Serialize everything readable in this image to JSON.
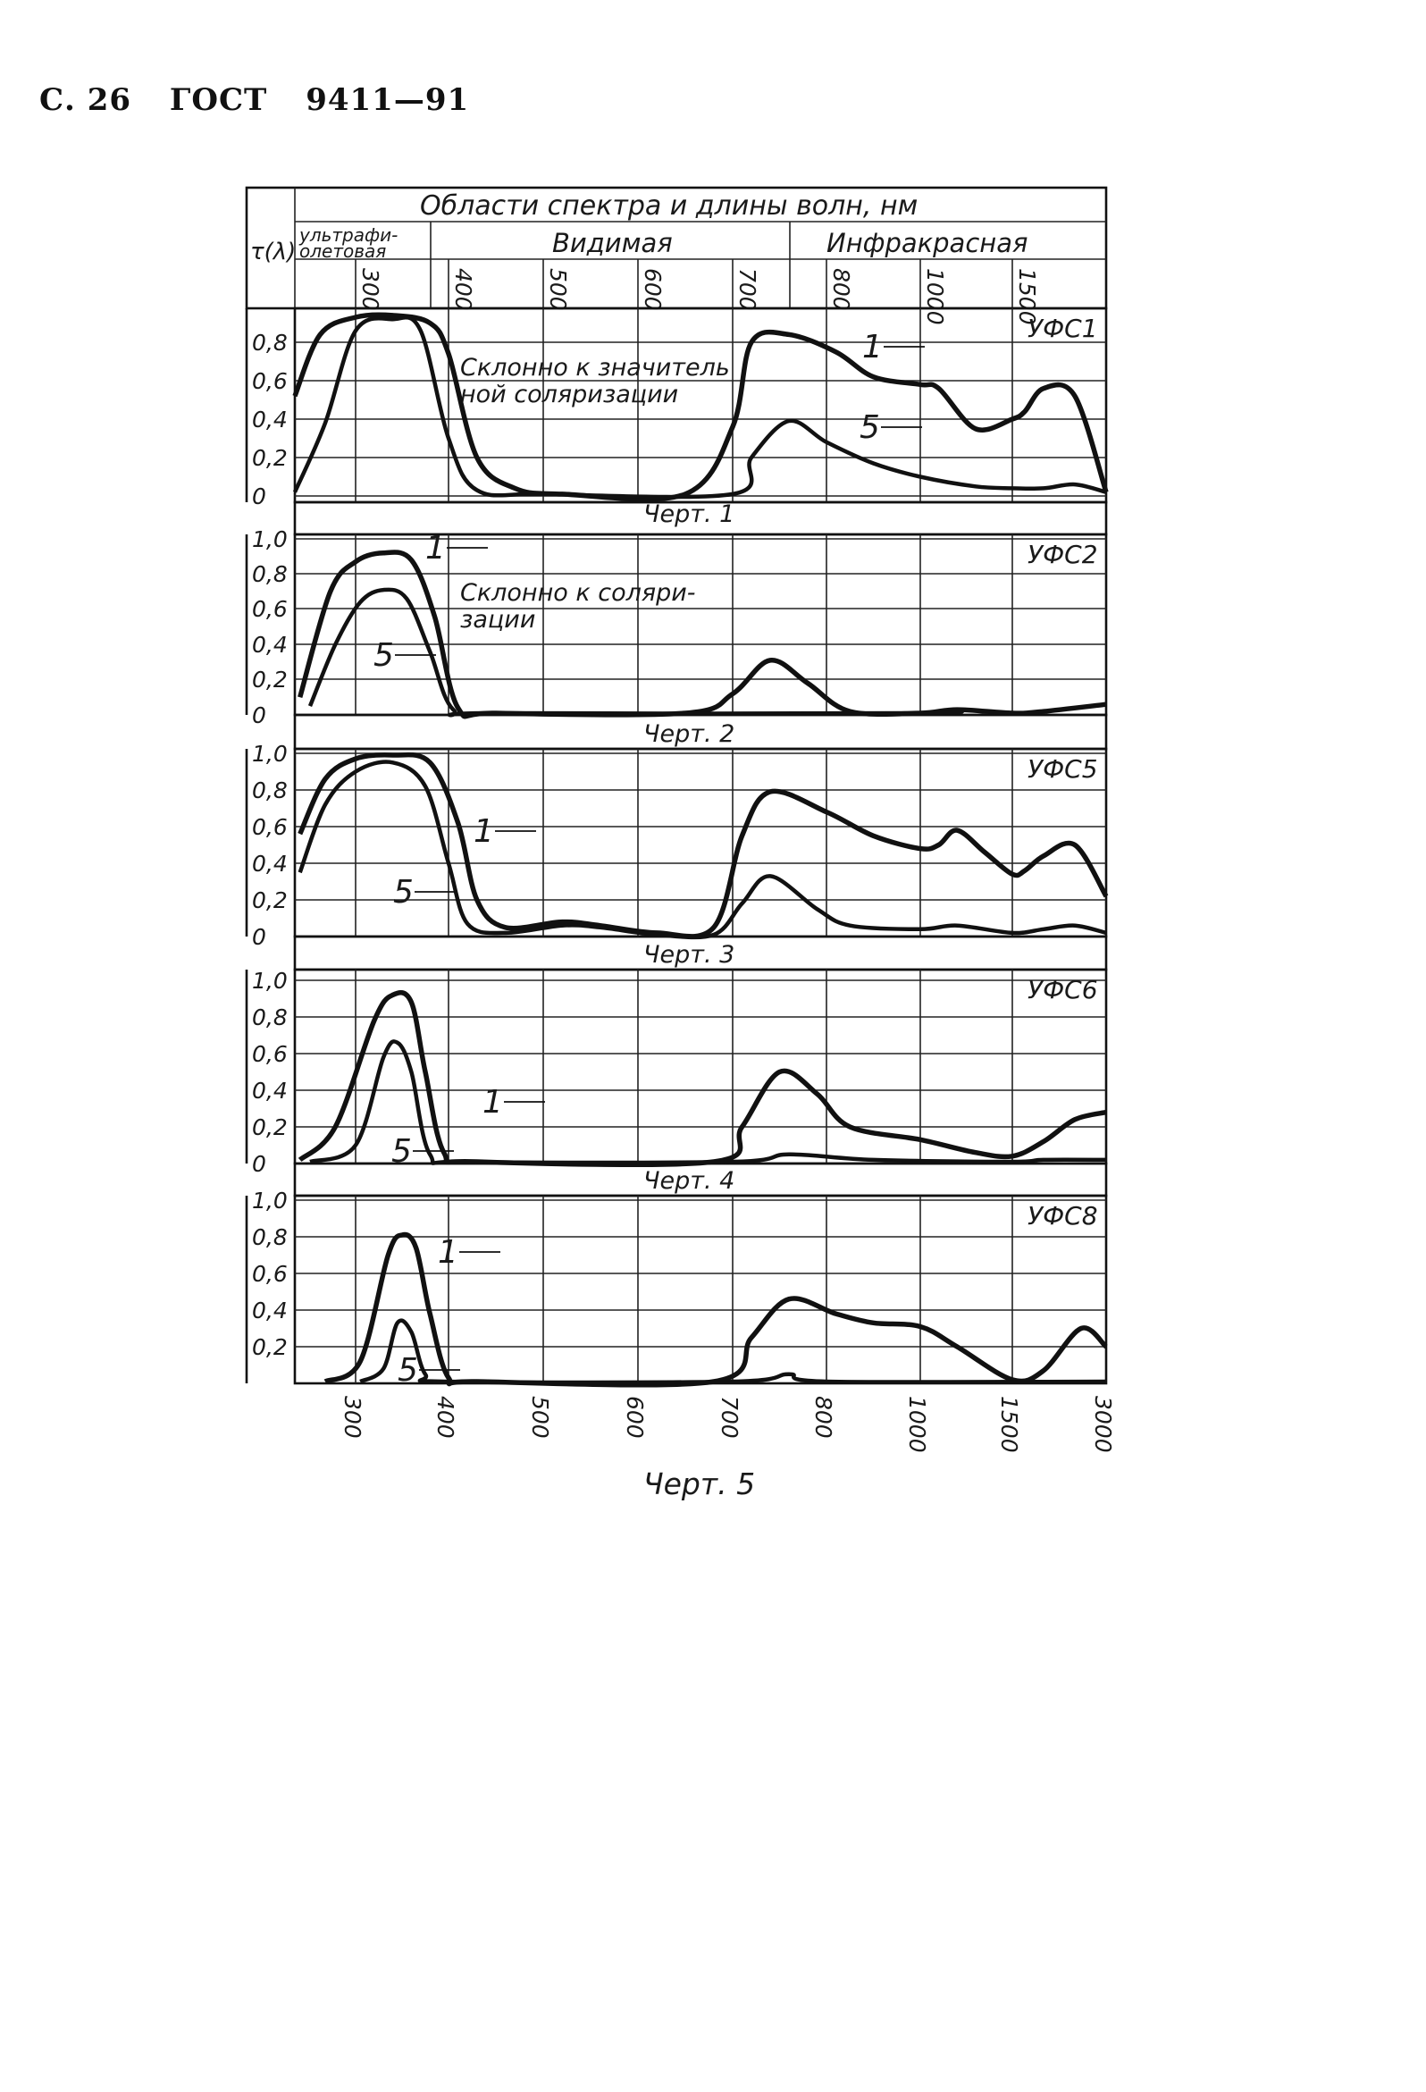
{
  "header": {
    "page": "С. 26",
    "standard": "ГОСТ",
    "number": "9411—91"
  },
  "table_header": {
    "ylabel": "τ(λ)",
    "title": "Области спектра и длины волн, нм",
    "regions": [
      "ультрафиолетовая",
      "Видимая",
      "Инфракрасная"
    ],
    "uv_line1": "ультрафи-",
    "uv_line2": "олетовая"
  },
  "bottom_label": "Черт. 5",
  "chart_data": [
    {
      "type": "line",
      "title": "УФС1",
      "caption": "Черт. 1",
      "annotation": [
        "Склонно к значитель",
        "ной соляризации"
      ],
      "x": [
        300,
        400,
        500,
        600,
        700,
        800,
        1000,
        1500,
        3000
      ],
      "ylim": [
        0,
        0.9
      ],
      "yticks": [
        "0",
        "0,2",
        "0,4",
        "0,6",
        "0,8"
      ],
      "series": [
        {
          "name": "1",
          "points": [
            [
              240,
              0.52
            ],
            [
              265,
              0.84
            ],
            [
              300,
              0.93
            ],
            [
              340,
              0.94
            ],
            [
              380,
              0.9
            ],
            [
              400,
              0.74
            ],
            [
              430,
              0.2
            ],
            [
              470,
              0.04
            ],
            [
              520,
              0.01
            ],
            [
              650,
              0.01
            ],
            [
              700,
              0.36
            ],
            [
              720,
              0.8
            ],
            [
              760,
              0.84
            ],
            [
              820,
              0.75
            ],
            [
              900,
              0.62
            ],
            [
              1000,
              0.58
            ],
            [
              1100,
              0.56
            ],
            [
              1300,
              0.35
            ],
            [
              1500,
              0.4
            ],
            [
              1700,
              0.44
            ],
            [
              2000,
              0.56
            ],
            [
              2500,
              0.52
            ],
            [
              3000,
              0.02
            ]
          ]
        },
        {
          "name": "5",
          "points": [
            [
              240,
              0.02
            ],
            [
              270,
              0.38
            ],
            [
              300,
              0.86
            ],
            [
              340,
              0.92
            ],
            [
              370,
              0.86
            ],
            [
              400,
              0.3
            ],
            [
              430,
              0.03
            ],
            [
              500,
              0.01
            ],
            [
              700,
              0.01
            ],
            [
              720,
              0.2
            ],
            [
              760,
              0.39
            ],
            [
              800,
              0.28
            ],
            [
              900,
              0.17
            ],
            [
              1000,
              0.1
            ],
            [
              1300,
              0.05
            ],
            [
              1500,
              0.04
            ],
            [
              2000,
              0.04
            ],
            [
              2500,
              0.06
            ],
            [
              3000,
              0.02
            ]
          ]
        }
      ]
    },
    {
      "type": "line",
      "title": "УФС2",
      "caption": "Черт. 2",
      "annotation": [
        "Склонно к соляри-",
        "зации"
      ],
      "x": [
        300,
        400,
        500,
        600,
        700,
        800,
        1000,
        1500,
        3000
      ],
      "ylim": [
        0,
        1.0
      ],
      "yticks": [
        "0",
        "0,2",
        "0,4",
        "0,6",
        "0,8",
        "1,0"
      ],
      "series": [
        {
          "name": "1",
          "points": [
            [
              245,
              0.1
            ],
            [
              275,
              0.7
            ],
            [
              300,
              0.87
            ],
            [
              330,
              0.92
            ],
            [
              360,
              0.88
            ],
            [
              385,
              0.56
            ],
            [
              410,
              0.04
            ],
            [
              450,
              0.01
            ],
            [
              650,
              0.01
            ],
            [
              700,
              0.12
            ],
            [
              740,
              0.31
            ],
            [
              780,
              0.18
            ],
            [
              850,
              0.02
            ],
            [
              1000,
              0.01
            ],
            [
              1200,
              0.03
            ],
            [
              1500,
              0.01
            ],
            [
              2000,
              0.02
            ],
            [
              3000,
              0.06
            ]
          ]
        },
        {
          "name": "5",
          "points": [
            [
              255,
              0.05
            ],
            [
              280,
              0.4
            ],
            [
              305,
              0.64
            ],
            [
              330,
              0.71
            ],
            [
              355,
              0.66
            ],
            [
              380,
              0.36
            ],
            [
              405,
              0.03
            ],
            [
              450,
              0.01
            ],
            [
              1000,
              0.01
            ],
            [
              1200,
              0.03
            ],
            [
              1500,
              0.01
            ],
            [
              2000,
              0.02
            ],
            [
              3000,
              0.06
            ]
          ]
        }
      ]
    },
    {
      "type": "line",
      "title": "УФС5",
      "caption": "Черт. 3",
      "x": [
        300,
        400,
        500,
        600,
        700,
        800,
        1000,
        1500,
        3000
      ],
      "ylim": [
        0,
        1.0
      ],
      "yticks": [
        "0",
        "0,2",
        "0,4",
        "0,6",
        "0,8",
        "1,0"
      ],
      "series": [
        {
          "name": "1",
          "points": [
            [
              245,
              0.56
            ],
            [
              270,
              0.86
            ],
            [
              300,
              0.97
            ],
            [
              340,
              0.99
            ],
            [
              380,
              0.95
            ],
            [
              410,
              0.62
            ],
            [
              430,
              0.2
            ],
            [
              460,
              0.05
            ],
            [
              520,
              0.08
            ],
            [
              560,
              0.06
            ],
            [
              620,
              0.02
            ],
            [
              680,
              0.05
            ],
            [
              710,
              0.55
            ],
            [
              740,
              0.79
            ],
            [
              800,
              0.68
            ],
            [
              900,
              0.55
            ],
            [
              1000,
              0.48
            ],
            [
              1100,
              0.5
            ],
            [
              1200,
              0.58
            ],
            [
              1350,
              0.46
            ],
            [
              1500,
              0.34
            ],
            [
              1700,
              0.36
            ],
            [
              2000,
              0.44
            ],
            [
              2500,
              0.5
            ],
            [
              3000,
              0.22
            ]
          ]
        },
        {
          "name": "5",
          "points": [
            [
              245,
              0.35
            ],
            [
              270,
              0.72
            ],
            [
              300,
              0.9
            ],
            [
              340,
              0.95
            ],
            [
              375,
              0.82
            ],
            [
              400,
              0.4
            ],
            [
              420,
              0.07
            ],
            [
              460,
              0.02
            ],
            [
              520,
              0.06
            ],
            [
              560,
              0.05
            ],
            [
              620,
              0.01
            ],
            [
              680,
              0.01
            ],
            [
              710,
              0.18
            ],
            [
              740,
              0.33
            ],
            [
              790,
              0.15
            ],
            [
              850,
              0.06
            ],
            [
              1000,
              0.04
            ],
            [
              1200,
              0.06
            ],
            [
              1500,
              0.02
            ],
            [
              2000,
              0.04
            ],
            [
              2500,
              0.06
            ],
            [
              3000,
              0.02
            ]
          ]
        }
      ]
    },
    {
      "type": "line",
      "title": "УФС6",
      "caption": "Черт. 4",
      "x": [
        300,
        400,
        500,
        600,
        700,
        800,
        1000,
        1500,
        3000
      ],
      "ylim": [
        0,
        1.0
      ],
      "yticks": [
        "0",
        "0,2",
        "0,4",
        "0,6",
        "0,8",
        "1,0"
      ],
      "series": [
        {
          "name": "1",
          "points": [
            [
              245,
              0.02
            ],
            [
              280,
              0.2
            ],
            [
              320,
              0.78
            ],
            [
              340,
              0.92
            ],
            [
              360,
              0.88
            ],
            [
              375,
              0.5
            ],
            [
              395,
              0.06
            ],
            [
              430,
              0.01
            ],
            [
              680,
              0.01
            ],
            [
              710,
              0.2
            ],
            [
              750,
              0.5
            ],
            [
              790,
              0.38
            ],
            [
              850,
              0.2
            ],
            [
              1000,
              0.13
            ],
            [
              1300,
              0.06
            ],
            [
              1500,
              0.04
            ],
            [
              2000,
              0.12
            ],
            [
              2500,
              0.24
            ],
            [
              3000,
              0.28
            ]
          ]
        },
        {
          "name": "5",
          "points": [
            [
              255,
              0.01
            ],
            [
              300,
              0.1
            ],
            [
              330,
              0.58
            ],
            [
              345,
              0.66
            ],
            [
              360,
              0.5
            ],
            [
              380,
              0.05
            ],
            [
              420,
              0.01
            ],
            [
              700,
              0.01
            ],
            [
              760,
              0.05
            ],
            [
              900,
              0.02
            ],
            [
              1500,
              0.01
            ],
            [
              2000,
              0.02
            ],
            [
              3000,
              0.02
            ]
          ]
        }
      ]
    },
    {
      "type": "line",
      "title": "УФС8",
      "caption": "Черт. 5",
      "x": [
        300,
        400,
        500,
        600,
        700,
        800,
        1000,
        1500,
        3000
      ],
      "ylim": [
        0,
        1.0
      ],
      "yticks": [
        "0,2",
        "0,4",
        "0,6",
        "0,8",
        "1,0"
      ],
      "series": [
        {
          "name": "1",
          "points": [
            [
              270,
              0.01
            ],
            [
              305,
              0.12
            ],
            [
              335,
              0.7
            ],
            [
              350,
              0.81
            ],
            [
              365,
              0.74
            ],
            [
              380,
              0.38
            ],
            [
              400,
              0.03
            ],
            [
              430,
              0.01
            ],
            [
              680,
              0.01
            ],
            [
              720,
              0.25
            ],
            [
              760,
              0.46
            ],
            [
              820,
              0.38
            ],
            [
              900,
              0.33
            ],
            [
              1000,
              0.31
            ],
            [
              1200,
              0.2
            ],
            [
              1500,
              0.02
            ],
            [
              2000,
              0.07
            ],
            [
              2600,
              0.3
            ],
            [
              3000,
              0.2
            ]
          ]
        },
        {
          "name": "5",
          "points": [
            [
              305,
              0.01
            ],
            [
              330,
              0.08
            ],
            [
              345,
              0.33
            ],
            [
              360,
              0.28
            ],
            [
              375,
              0.05
            ],
            [
              400,
              0.01
            ],
            [
              700,
              0.01
            ],
            [
              760,
              0.05
            ],
            [
              800,
              0.01
            ],
            [
              3000,
              0.01
            ]
          ]
        }
      ]
    }
  ],
  "x_axis_ticks": [
    "300",
    "400",
    "500",
    "600",
    "700",
    "800",
    "1000",
    "1500",
    "3000"
  ],
  "header_ticks": [
    "300",
    "400",
    "500",
    "600",
    "700",
    "800",
    "1000",
    "1500"
  ]
}
